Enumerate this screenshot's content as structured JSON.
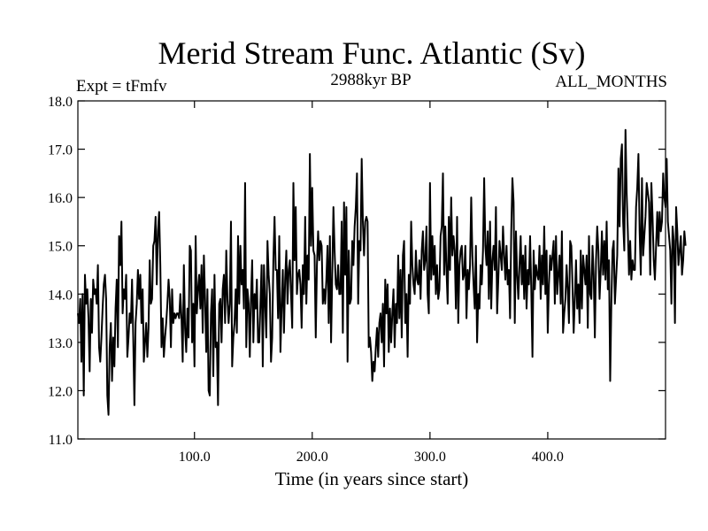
{
  "chart_data": {
    "type": "line",
    "title": "Merid Stream Func. Atlantic (Sv)",
    "subtitle_left": "Expt = tFmfv",
    "subtitle_center": "2988kyr BP",
    "subtitle_right": "ALL_MONTHS",
    "xlabel": "Time (in years since start)",
    "ylabel": "",
    "xlim": [
      1,
      500
    ],
    "ylim": [
      11.0,
      18.0
    ],
    "x_ticks": [
      100,
      200,
      300,
      400
    ],
    "x_tick_labels": [
      "100.0",
      "200.0",
      "300.0",
      "400.0"
    ],
    "y_ticks": [
      11,
      12,
      13,
      14,
      15,
      16,
      17,
      18
    ],
    "y_tick_labels": [
      "11.0",
      "12.0",
      "13.0",
      "14.0",
      "15.0",
      "16.0",
      "17.0",
      "18.0"
    ],
    "grid": false,
    "series": [
      {
        "name": "Merid Stream Func. Atlantic",
        "color": "#000000",
        "x_start": 1,
        "x_step": 1,
        "values": [
          13.6,
          13.4,
          13.9,
          12.6,
          14.0,
          11.9,
          14.4,
          13.8,
          14.1,
          13.5,
          12.4,
          13.9,
          13.2,
          14.3,
          14.0,
          14.1,
          13.8,
          14.6,
          12.9,
          12.6,
          13.1,
          13.7,
          14.2,
          14.4,
          13.9,
          11.9,
          11.5,
          12.9,
          13.4,
          12.2,
          13.1,
          12.5,
          13.7,
          14.3,
          12.9,
          15.2,
          14.6,
          15.5,
          13.6,
          14.1,
          13.9,
          14.4,
          12.7,
          13.1,
          13.6,
          13.4,
          14.3,
          13.1,
          11.7,
          13.4,
          13.8,
          14.5,
          13.9,
          14.4,
          13.4,
          14.1,
          12.6,
          13.0,
          13.4,
          12.7,
          13.3,
          14.7,
          13.8,
          13.9,
          15.0,
          15.1,
          15.6,
          14.2,
          15.3,
          15.7,
          14.6,
          12.9,
          13.5,
          12.7,
          13.1,
          13.4,
          13.8,
          14.3,
          13.9,
          12.9,
          14.1,
          13.4,
          13.6,
          13.5,
          13.6,
          13.6,
          13.5,
          14.0,
          13.5,
          12.6,
          14.6,
          13.3,
          12.8,
          13.7,
          13.1,
          15.0,
          14.9,
          13.0,
          13.8,
          12.5,
          15.2,
          13.6,
          14.1,
          14.4,
          13.7,
          14.6,
          13.2,
          14.8,
          13.9,
          12.8,
          14.1,
          12.0,
          11.9,
          13.6,
          14.1,
          12.3,
          14.4,
          12.9,
          13.0,
          11.7,
          13.8,
          13.9,
          13.0,
          14.1,
          14.4,
          13.4,
          14.9,
          13.9,
          13.4,
          13.8,
          15.5,
          12.5,
          13.1,
          13.4,
          14.1,
          13.2,
          15.2,
          13.8,
          15.0,
          14.2,
          14.5,
          13.7,
          16.3,
          12.9,
          14.1,
          13.8,
          12.7,
          13.9,
          14.7,
          13.0,
          14.0,
          13.7,
          14.3,
          13.0,
          13.0,
          13.8,
          14.6,
          12.5,
          14.6,
          13.8,
          13.1,
          15.1,
          14.4,
          14.0,
          12.6,
          13.1,
          14.7,
          15.6,
          14.5,
          14.5,
          13.5,
          15.2,
          12.8,
          13.7,
          14.5,
          13.2,
          14.3,
          14.9,
          13.8,
          14.5,
          14.7,
          14.0,
          13.3,
          16.3,
          14.7,
          15.8,
          14.0,
          14.4,
          14.5,
          14.2,
          13.3,
          14.6,
          14.0,
          15.6,
          13.8,
          14.8,
          14.3,
          16.9,
          15.0,
          16.2,
          14.9,
          14.8,
          13.1,
          14.6,
          15.3,
          14.7,
          15.1,
          15.0,
          13.8,
          14.1,
          13.8,
          14.3,
          15.0,
          13.4,
          15.2,
          13.0,
          14.4,
          15.8,
          14.9,
          14.2,
          14.1,
          14.6,
          14.0,
          14.0,
          15.5,
          13.2,
          15.9,
          14.4,
          15.8,
          12.6,
          14.9,
          13.8,
          13.9,
          15.1,
          14.6,
          15.4,
          15.8,
          16.5,
          13.8,
          15.1,
          14.9,
          16.8,
          15.5,
          14.8,
          15.5,
          15.6,
          15.5,
          12.9,
          13.1,
          12.8,
          12.2,
          12.6,
          12.4,
          12.9,
          13.3,
          12.7,
          13.4,
          13.6,
          13.0,
          13.8,
          12.5,
          14.3,
          13.6,
          14.2,
          12.8,
          13.7,
          13.0,
          13.6,
          14.1,
          12.9,
          13.8,
          13.4,
          14.8,
          13.5,
          14.5,
          13.1,
          14.8,
          15.1,
          13.4,
          14.0,
          12.7,
          14.4,
          13.8,
          15.5,
          14.6,
          14.2,
          14.0,
          14.9,
          14.3,
          14.2,
          14.7,
          13.9,
          14.9,
          15.3,
          14.5,
          14.7,
          15.4,
          14.0,
          13.6,
          16.3,
          14.3,
          15.2,
          14.4,
          15.0,
          14.0,
          14.6,
          13.9,
          14.1,
          15.2,
          15.4,
          16.5,
          14.4,
          15.4,
          14.5,
          13.8,
          15.6,
          14.5,
          16.0,
          14.8,
          15.2,
          14.9,
          13.7,
          15.6,
          13.4,
          14.6,
          14.9,
          15.0,
          14.3,
          14.4,
          15.0,
          13.5,
          14.5,
          14.1,
          14.6,
          16.0,
          14.8,
          14.2,
          13.7,
          15.0,
          13.0,
          14.0,
          13.7,
          14.6,
          14.2,
          14.9,
          16.4,
          15.0,
          14.6,
          15.3,
          13.9,
          15.5,
          13.7,
          14.7,
          15.0,
          14.5,
          15.8,
          13.6,
          14.3,
          15.1,
          14.8,
          14.5,
          15.4,
          14.8,
          14.3,
          15.0,
          14.2,
          14.5,
          13.5,
          15.3,
          16.4,
          15.9,
          13.4,
          15.3,
          14.4,
          13.9,
          14.6,
          15.2,
          14.2,
          14.8,
          13.9,
          15.0,
          13.7,
          14.5,
          14.2,
          15.2,
          14.1,
          12.7,
          14.9,
          14.1,
          14.6,
          14.4,
          14.3,
          15.0,
          13.9,
          14.8,
          14.2,
          15.4,
          14.0,
          14.9,
          13.2,
          14.2,
          14.8,
          14.5,
          14.8,
          15.1,
          13.8,
          15.2,
          14.0,
          14.4,
          14.8,
          13.8,
          15.3,
          13.2,
          13.6,
          13.9,
          14.6,
          14.1,
          13.4,
          15.1,
          15.0,
          14.2,
          13.2,
          13.9,
          14.7,
          13.7,
          14.2,
          13.4,
          14.9,
          13.7,
          14.8,
          14.5,
          14.2,
          14.8,
          13.3,
          15.2,
          14.0,
          13.9,
          15.0,
          14.4,
          13.1,
          14.7,
          15.4,
          14.9,
          13.9,
          14.5,
          15.3,
          14.4,
          15.1,
          14.3,
          15.5,
          14.1,
          14.7,
          12.2,
          13.8,
          14.9,
          15.1,
          13.8,
          14.3,
          14.8,
          16.6,
          15.4,
          16.8,
          17.1,
          15.5,
          14.9,
          17.4,
          16.1,
          15.3,
          14.4,
          15.1,
          14.3,
          14.7,
          14.5,
          14.5,
          15.8,
          16.2,
          16.9,
          15.3,
          14.4,
          16.4,
          14.8,
          15.2,
          15.6,
          16.3,
          16.1,
          15.9,
          14.4,
          16.3,
          15.6,
          14.7,
          14.3,
          15.0,
          15.7,
          15.0,
          15.7,
          15.3,
          15.5,
          16.5,
          16.0,
          15.8,
          16.8,
          15.5,
          15.2,
          14.9,
          13.8,
          15.4,
          15.1,
          13.4,
          15.8,
          15.3,
          14.6,
          14.9,
          15.2,
          14.4,
          14.7,
          15.3,
          15.0
        ]
      }
    ]
  }
}
